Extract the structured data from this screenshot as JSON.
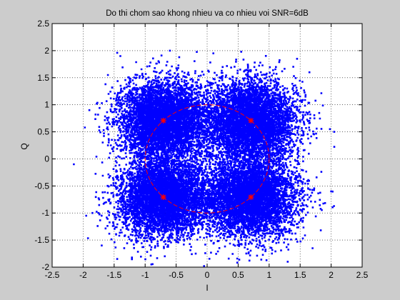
{
  "figure": {
    "background": "#cccccc"
  },
  "chart_data": {
    "type": "scatter",
    "title": "Do thi chom sao khong nhieu va co nhieu voi SNR=6dB",
    "xlabel": "I",
    "ylabel": "Q",
    "xlim": [
      -2.5,
      2.5
    ],
    "ylim": [
      -2,
      2.5
    ],
    "xticks": [
      -2.5,
      -2,
      -1.5,
      -1,
      -0.5,
      0,
      0.5,
      1,
      1.5,
      2,
      2.5
    ],
    "yticks": [
      -2,
      -1.5,
      -1,
      -0.5,
      0,
      0.5,
      1,
      1.5,
      2,
      2.5
    ],
    "xtick_labels": [
      "-2.5",
      "-2",
      "-1.5",
      "-1",
      "-0.5",
      "0",
      "0.5",
      "1",
      "1.5",
      "2",
      "2.5"
    ],
    "ytick_labels": [
      "-2",
      "-1.5",
      "-1",
      "-0.5",
      "0",
      "0.5",
      "1",
      "1.5",
      "2",
      "2.5"
    ],
    "grid": true,
    "grid_style": "dotted",
    "series": [
      {
        "kind": "noisy-points",
        "color": "#0000ff",
        "marker": "dot",
        "clusters": [
          {
            "center": [
              0.707,
              0.707
            ],
            "spread": 0.36,
            "approx_points": 5500
          },
          {
            "center": [
              -0.707,
              0.707
            ],
            "spread": 0.36,
            "approx_points": 5500
          },
          {
            "center": [
              -0.707,
              -0.707
            ],
            "spread": 0.36,
            "approx_points": 5500
          },
          {
            "center": [
              0.707,
              -0.707
            ],
            "spread": 0.36,
            "approx_points": 5500
          }
        ],
        "outliers": [
          [
            -2.15,
            -0.1
          ],
          [
            -1.85,
            -1.0
          ],
          [
            -1.9,
            0.9
          ],
          [
            2.0,
            -0.6
          ],
          [
            1.98,
            0.55
          ],
          [
            2.05,
            0.5
          ],
          [
            -0.05,
            -1.98
          ],
          [
            -1.95,
            -1.05
          ],
          [
            -1.6,
            1.55
          ],
          [
            1.65,
            1.6
          ],
          [
            1.7,
            -1.65
          ],
          [
            -1.7,
            -1.6
          ],
          [
            -1.45,
            -1.85
          ],
          [
            1.3,
            -1.9
          ],
          [
            1.45,
            1.85
          ],
          [
            -1.4,
            1.9
          ],
          [
            0.55,
            1.98
          ],
          [
            -0.6,
            2.0
          ],
          [
            0.1,
            1.95
          ],
          [
            -0.9,
            -1.95
          ]
        ]
      },
      {
        "kind": "reference-circle",
        "center": [
          0,
          0
        ],
        "radius": 1.0,
        "color": "#ff0000",
        "style": "dashed"
      },
      {
        "kind": "ideal-constellation",
        "color": "#ff0000",
        "marker": "star",
        "points": [
          [
            0.707,
            0.707
          ],
          [
            -0.707,
            0.707
          ],
          [
            -0.707,
            -0.707
          ],
          [
            0.707,
            -0.707
          ]
        ]
      }
    ]
  }
}
